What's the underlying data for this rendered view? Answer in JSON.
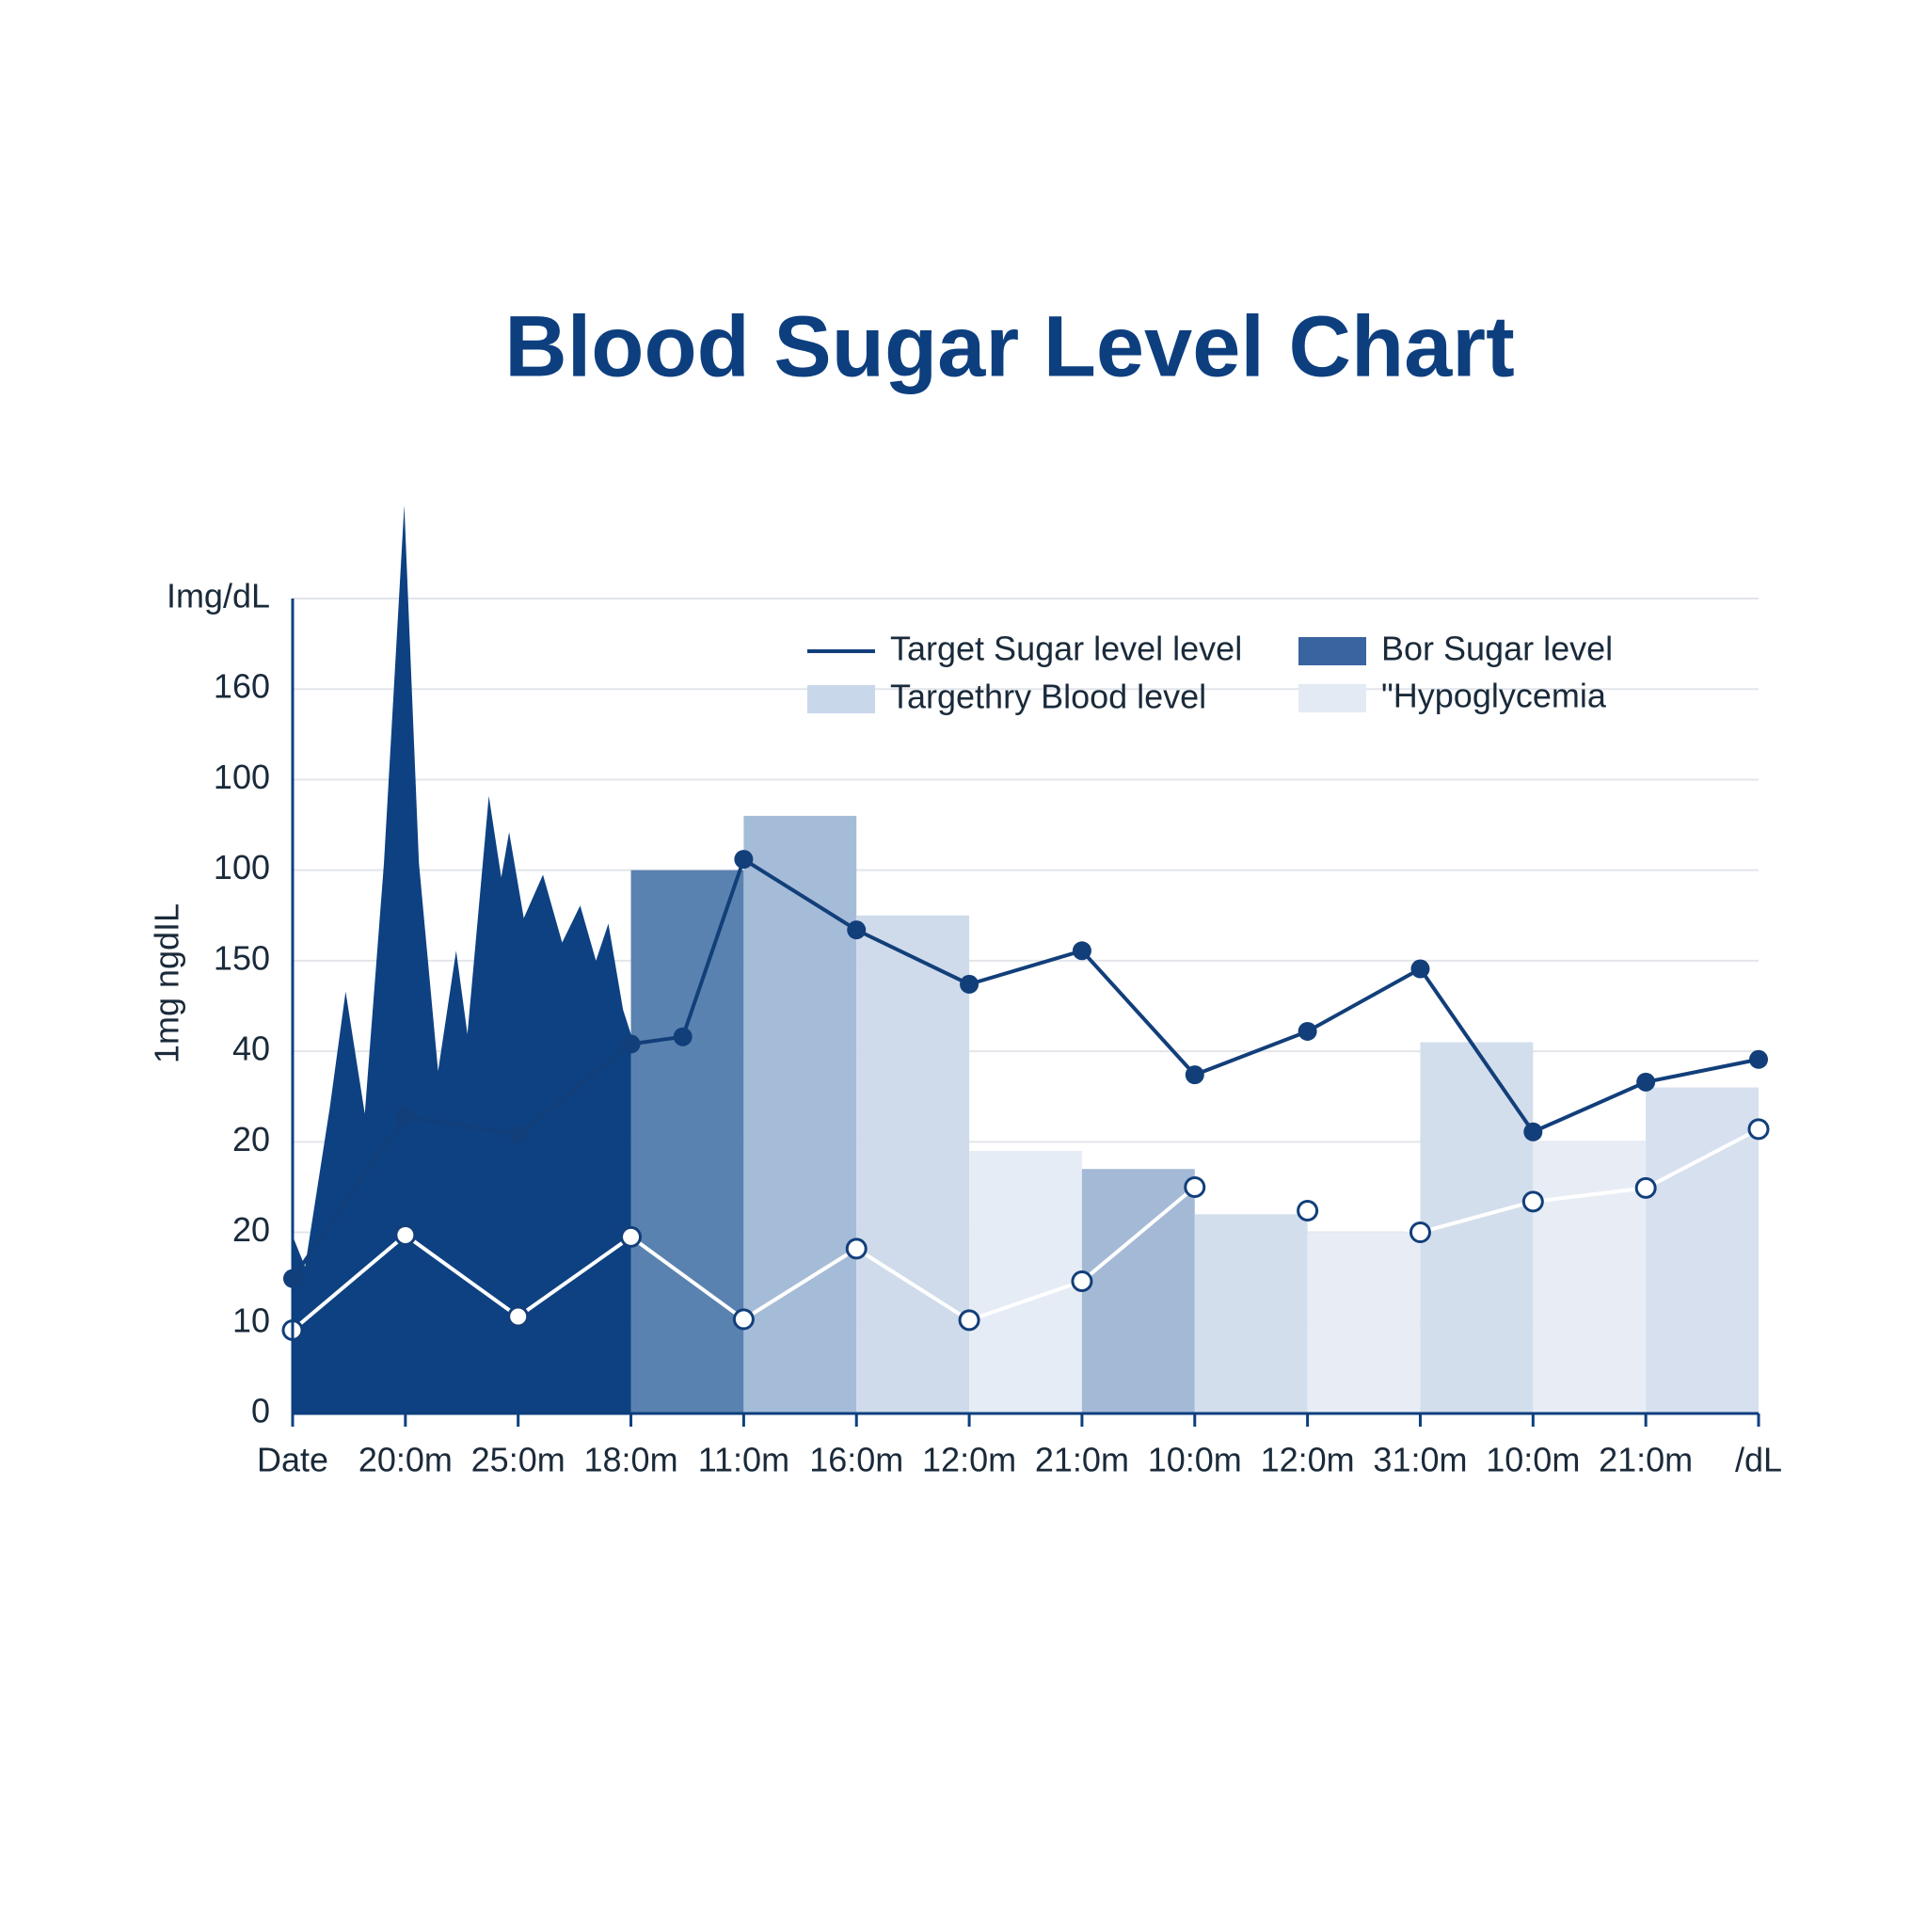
{
  "chart_data": {
    "type": "bar",
    "title": "Blood Sugar Level Chart",
    "y_label": "1mg ngdIL",
    "categories": [
      "Date",
      "20:0m",
      "25:0m",
      "18:0m",
      "11:0m",
      "16:0m",
      "12:0m",
      "21:0m",
      "10:0m",
      "12:0m",
      "31:0m",
      "10:0m",
      "21:0m",
      "/dL"
    ],
    "ylim": [
      0,
      9
    ],
    "yticks": [
      0,
      {
        "value": 1,
        "label": "10"
      },
      {
        "value": 2,
        "label": "20"
      },
      {
        "value": 3,
        "label": "20"
      },
      {
        "value": 4,
        "label": "40"
      },
      {
        "value": 5,
        "label": "150"
      },
      {
        "value": 6,
        "label": "100"
      },
      {
        "value": 7,
        "label": "100"
      },
      {
        "value": 8,
        "label": "160"
      },
      {
        "value": 9,
        "label": "Img/dL"
      }
    ],
    "grid": true,
    "legend": [
      {
        "label": "Target Sugar level level",
        "color": "#123f7a",
        "kind": "line"
      },
      {
        "label": "Bor Sugar level",
        "color": "#3a64a0",
        "kind": "rect"
      },
      {
        "label": "Targethry Blood level",
        "color": "#c9d7ea",
        "kind": "rect"
      },
      {
        "label": "\"Hypoglycemia",
        "color": "#e3eaf4",
        "kind": "rect"
      }
    ],
    "series": [
      {
        "type": "bar",
        "values": [
          null,
          null,
          null,
          6.0,
          6.6,
          5.5,
          2.9,
          2.7,
          2.2,
          2.0,
          4.1,
          3.0,
          3.6,
          null
        ],
        "colors": [
          null,
          null,
          null,
          "#5a82b0",
          "#a5bcd8",
          "#cfdbea",
          "#e6ecf5",
          "#a3b9d6",
          "#d3deec",
          "#e8edf5",
          "#d3deec",
          "#e8edf5",
          "#d6e0ee",
          null
        ]
      },
      {
        "type": "area",
        "color": "#0d4182",
        "x": [
          0,
          0.11,
          0.33,
          0.47,
          0.64,
          0.81,
          0.99,
          1.12,
          1.29,
          1.45,
          1.55,
          1.74,
          1.85,
          1.92,
          2.05,
          2.22,
          2.39,
          2.55,
          2.69,
          2.8,
          2.93,
          3.0
        ],
        "values": [
          1.96,
          1.62,
          3.38,
          4.66,
          3.31,
          6.08,
          10.03,
          6.08,
          3.78,
          5.11,
          4.19,
          6.82,
          5.92,
          6.42,
          5.47,
          5.95,
          5.2,
          5.61,
          5.0,
          5.41,
          4.46,
          4.19
        ]
      },
      {
        "type": "line",
        "color": "#123f7a",
        "marker": "filled",
        "x": [
          0,
          1,
          2,
          3,
          3.46,
          4,
          5,
          6,
          7,
          8,
          9,
          10,
          11,
          12,
          13
        ],
        "values": [
          1.49,
          3.28,
          3.08,
          4.08,
          4.16,
          6.12,
          5.34,
          4.74,
          5.11,
          3.74,
          4.22,
          4.91,
          3.11,
          3.66,
          3.91
        ]
      },
      {
        "type": "line",
        "color": "#ffffff",
        "marker": "hollow",
        "values": [
          0.92,
          1.97,
          1.07,
          1.95,
          1.04,
          1.82,
          1.03,
          1.46,
          2.5,
          2.24,
          2.0,
          2.34,
          2.49,
          3.14
        ]
      }
    ]
  }
}
